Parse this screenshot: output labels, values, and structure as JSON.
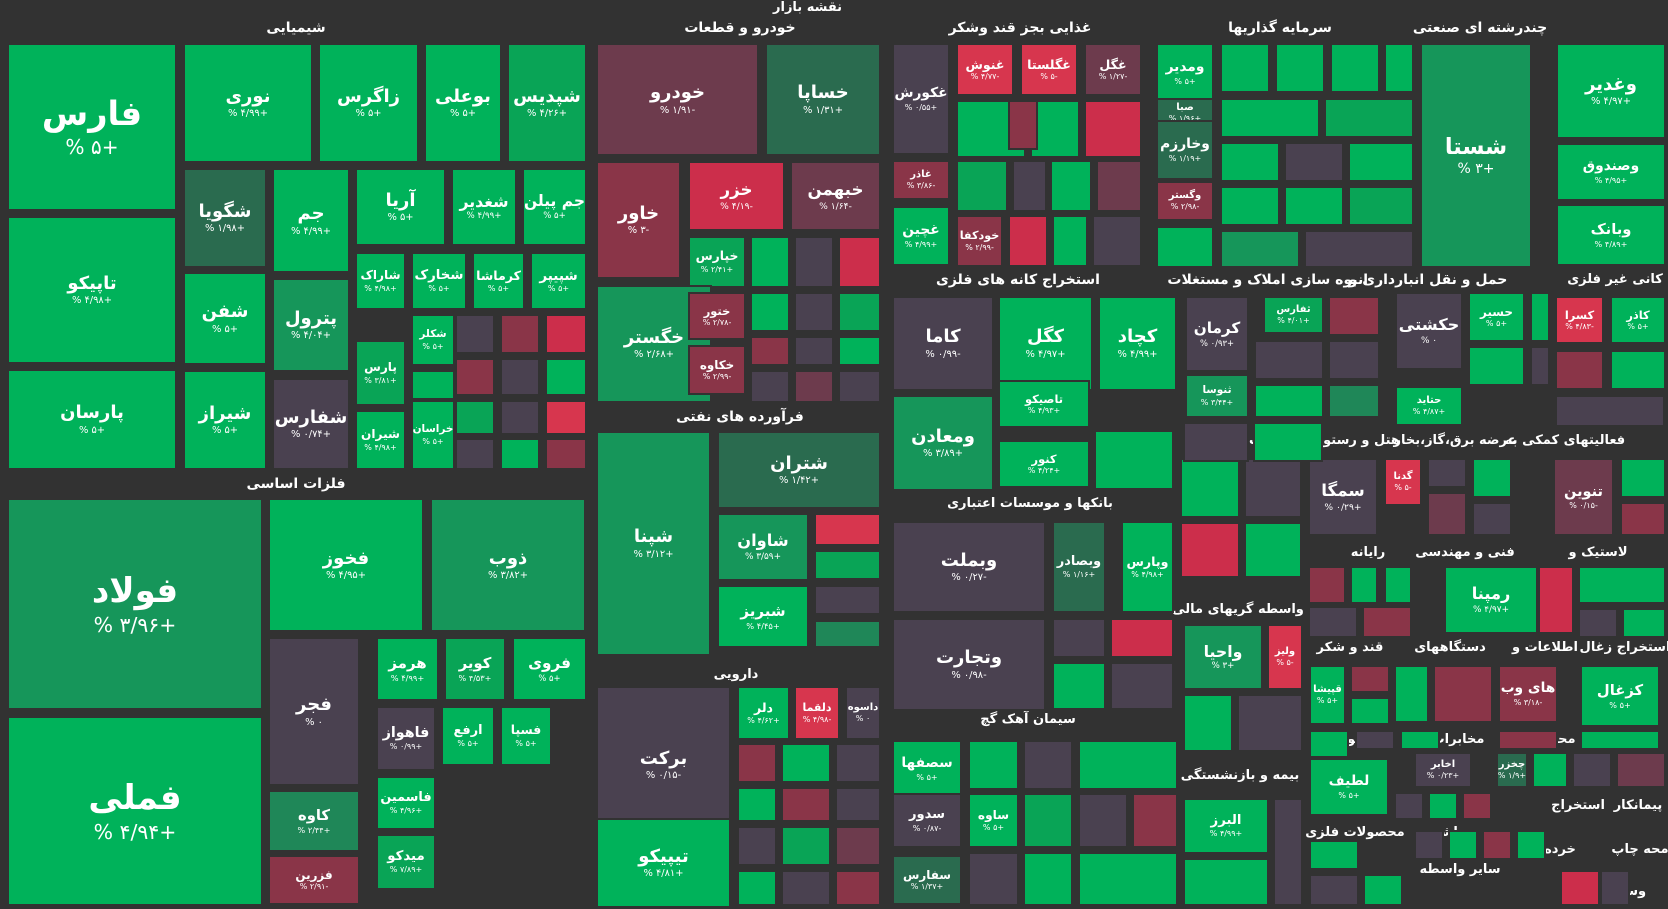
{
  "map_title": "نقشه بازار",
  "colors": {
    "g5": "#00b25a",
    "g4": "#09a456",
    "g3": "#16965a",
    "g2": "#1f8758",
    "g1": "#2a6b4f",
    "z": "#4a4150",
    "r1": "#6d3b4d",
    "r2": "#8a3548",
    "r3": "#a93248",
    "r4": "#cc2e4b",
    "r5": "#d7364e"
  },
  "sectors": [
    {
      "name": "شیمیایی"
    },
    {
      "name": "خودرو و قطعات"
    },
    {
      "name": "غذایی بجز قند وشکر"
    },
    {
      "name": "سرمایه گذاریها"
    },
    {
      "name": "چندرشته ای صنعتی"
    },
    {
      "name": "فلزات اساسی"
    },
    {
      "name": "فرآورده های نفتی"
    },
    {
      "name": "استخراج کانه های فلزی"
    },
    {
      "name": "انبوه سازی املاک و مستغلات"
    },
    {
      "name": "حمل و نقل انبارداری و"
    },
    {
      "name": "کانی غیر فلزی"
    },
    {
      "name": "زراعت و خدمات"
    },
    {
      "name": "هتل و رستوران"
    },
    {
      "name": "عرضه برق،گاز،بخار"
    },
    {
      "name": "فعالیتهای کمکی به"
    },
    {
      "name": "بانکها و موسسات اعتباری"
    },
    {
      "name": "دارویی"
    },
    {
      "name": "رایانه"
    },
    {
      "name": "فنی و مهندسی"
    },
    {
      "name": "لاستیک و"
    },
    {
      "name": "واسطه گریهای مالی"
    },
    {
      "name": "قند و شکر"
    },
    {
      "name": "دستگاههای"
    },
    {
      "name": "اطلاعات و"
    },
    {
      "name": "استخراج زغال"
    },
    {
      "name": "سیمان آهک گچ"
    },
    {
      "name": "محصولات"
    },
    {
      "name": "مخابرات"
    },
    {
      "name": "محصولات"
    },
    {
      "name": "کاشی و"
    },
    {
      "name": "بیمه و بازنشستگی"
    },
    {
      "name": "منسوجات"
    },
    {
      "name": "استخراج"
    },
    {
      "name": "پیمانکار"
    },
    {
      "name": "محصولات فلزی"
    },
    {
      "name": "ماشین"
    },
    {
      "name": "محه چاپ"
    },
    {
      "name": "خرده"
    },
    {
      "name": "سایر واسطه"
    },
    {
      "name": "وسایل"
    }
  ],
  "tiles": [
    {
      "name": "فارس",
      "pct": "+۵ %",
      "c": "g5",
      "big": 1
    },
    {
      "name": "تاپیکو",
      "pct": "+۴/۹۸ %",
      "c": "g5"
    },
    {
      "name": "پارسان",
      "pct": "+۵ %",
      "c": "g5"
    },
    {
      "name": "نوری",
      "pct": "+۴/۹۹ %",
      "c": "g5"
    },
    {
      "name": "زاگرس",
      "pct": "+۵ %",
      "c": "g5"
    },
    {
      "name": "بوعلی",
      "pct": "+۵ %",
      "c": "g5"
    },
    {
      "name": "شپدیس",
      "pct": "+۴/۲۶ %",
      "c": "g4"
    },
    {
      "name": "شگویا",
      "pct": "+۱/۹۸ %",
      "c": "g1"
    },
    {
      "name": "جم",
      "pct": "+۴/۹۹ %",
      "c": "g5"
    },
    {
      "name": "آریا",
      "pct": "+۵ %",
      "c": "g5"
    },
    {
      "name": "شغدیر",
      "pct": "+۴/۹۹ %",
      "c": "g5"
    },
    {
      "name": "جم پیلن",
      "pct": "+۵ %",
      "c": "g5"
    },
    {
      "name": "شفن",
      "pct": "+۵ %",
      "c": "g5"
    },
    {
      "name": "پترول",
      "pct": "+۴/۰۴ %",
      "c": "g3"
    },
    {
      "name": "شاراک",
      "pct": "+۴/۹۸ %",
      "c": "g5"
    },
    {
      "name": "شخارک",
      "pct": "+۵ %",
      "c": "g5"
    },
    {
      "name": "کرماشا",
      "pct": "+۵ %",
      "c": "g5"
    },
    {
      "name": "شپیپر",
      "pct": "+۵ %",
      "c": "g5"
    },
    {
      "name": "شکلر",
      "pct": "+۵ %",
      "c": "g5"
    },
    {
      "name": "شیراز",
      "pct": "+۵ %",
      "c": "g5"
    },
    {
      "name": "پارس",
      "pct": "+۳/۸۱ %",
      "c": "g4"
    },
    {
      "name": "شفارس",
      "pct": "+۰/۷۴ %",
      "c": "z"
    },
    {
      "name": "شیران",
      "pct": "+۴/۹۸ %",
      "c": "g5"
    },
    {
      "name": "خراسان",
      "pct": "+۵ %",
      "c": "g5"
    },
    {
      "name": "خودرو",
      "pct": "-۱/۹۱ %",
      "c": "r1"
    },
    {
      "name": "خساپا",
      "pct": "+۱/۳۱ %",
      "c": "g1"
    },
    {
      "name": "خاور",
      "pct": "-۳ %",
      "c": "r2"
    },
    {
      "name": "خزر",
      "pct": "-۴/۱۹ %",
      "c": "r4"
    },
    {
      "name": "خبهمن",
      "pct": "-۱/۶۴ %",
      "c": "r1"
    },
    {
      "name": "خپارس",
      "pct": "+۲/۴۱ %",
      "c": "g4"
    },
    {
      "name": "خگستر",
      "pct": "+۲/۶۸ %",
      "c": "g3"
    },
    {
      "name": "ختور",
      "pct": "-۲/۷۸ %",
      "c": "r2"
    },
    {
      "name": "خکاوه",
      "pct": "-۲/۹۹ %",
      "c": "r2"
    },
    {
      "name": "غکورش",
      "pct": "+۰/۵۵ %",
      "c": "z"
    },
    {
      "name": "غنوش",
      "pct": "-۴/۷۷ %",
      "c": "r5"
    },
    {
      "name": "غگلستا",
      "pct": "-۵ %",
      "c": "r5"
    },
    {
      "name": "غگل",
      "pct": "-۱/۲۷ %",
      "c": "r1"
    },
    {
      "name": "غاذر",
      "pct": "-۳/۸۶ %",
      "c": "r2"
    },
    {
      "name": "غچین",
      "pct": "+۴/۹۹ %",
      "c": "g5"
    },
    {
      "name": "خودکفا",
      "pct": "-۲/۹۹ %",
      "c": "r2"
    },
    {
      "name": "ومدیر",
      "pct": "+۵ %",
      "c": "g5"
    },
    {
      "name": "صبا",
      "pct": "+۱/۹۶ %",
      "c": "g1"
    },
    {
      "name": "وخارزم",
      "pct": "+۱/۱۹ %",
      "c": "g1"
    },
    {
      "name": "وگستر",
      "pct": "-۲/۹۸ %",
      "c": "r2"
    },
    {
      "name": "شستا",
      "pct": "+۳ %",
      "c": "g3",
      "big": 1
    },
    {
      "name": "وغدیر",
      "pct": "+۴/۹۷ %",
      "c": "g5"
    },
    {
      "name": "وصندوق",
      "pct": "+۴/۹۵ %",
      "c": "g5"
    },
    {
      "name": "وبانک",
      "pct": "+۴/۸۹ %",
      "c": "g5"
    },
    {
      "name": "فولاد",
      "pct": "+۳/۹۶ %",
      "c": "g3",
      "big": 1
    },
    {
      "name": "فملی",
      "pct": "+۴/۹۴ %",
      "c": "g5",
      "big": 1
    },
    {
      "name": "فخوز",
      "pct": "+۴/۹۵ %",
      "c": "g5"
    },
    {
      "name": "ذوب",
      "pct": "+۳/۸۲ %",
      "c": "g3"
    },
    {
      "name": "فجر",
      "pct": "۰ %",
      "c": "z"
    },
    {
      "name": "هرمز",
      "pct": "+۴/۹۹ %",
      "c": "g5"
    },
    {
      "name": "کویر",
      "pct": "+۴/۵۳ %",
      "c": "g4"
    },
    {
      "name": "فروی",
      "pct": "+۵ %",
      "c": "g5"
    },
    {
      "name": "فاهواز",
      "pct": "+۰/۹۹ %",
      "c": "z"
    },
    {
      "name": "ارفع",
      "pct": "+۵ %",
      "c": "g5"
    },
    {
      "name": "فسپا",
      "pct": "+۵ %",
      "c": "g5"
    },
    {
      "name": "کاوه",
      "pct": "+۲/۴۴ %",
      "c": "g2"
    },
    {
      "name": "فاسمین",
      "pct": "+۴/۹۶ %",
      "c": "g5"
    },
    {
      "name": "فزرین",
      "pct": "-۲/۹۱ %",
      "c": "r2"
    },
    {
      "name": "میدکو",
      "pct": "+۷/۸۹ %",
      "c": "g4"
    },
    {
      "name": "شپنا",
      "pct": "+۳/۱۲ %",
      "c": "g3"
    },
    {
      "name": "شتران",
      "pct": "+۱/۴۲ %",
      "c": "g1"
    },
    {
      "name": "شاوان",
      "pct": "+۳/۵۹ %",
      "c": "g3"
    },
    {
      "name": "شبریز",
      "pct": "+۴/۴۵ %",
      "c": "g5"
    },
    {
      "name": "برکت",
      "pct": "-۰/۱۵ %",
      "c": "z"
    },
    {
      "name": "تیپیکو",
      "pct": "+۴/۸۱ %",
      "c": "g5"
    },
    {
      "name": "دلر",
      "pct": "+۴/۶۲ %",
      "c": "g5"
    },
    {
      "name": "دلقما",
      "pct": "-۴/۹۸ %",
      "c": "r5"
    },
    {
      "name": "داسوه",
      "pct": "۰ %",
      "c": "z"
    },
    {
      "name": "کاما",
      "pct": "-۰/۹۹ %",
      "c": "z"
    },
    {
      "name": "کگل",
      "pct": "+۴/۹۷ %",
      "c": "g5"
    },
    {
      "name": "کچاد",
      "pct": "+۴/۹۹ %",
      "c": "g5"
    },
    {
      "name": "تاصیکو",
      "pct": "+۴/۹۳ %",
      "c": "g5"
    },
    {
      "name": "ومعادن",
      "pct": "+۳/۸۹ %",
      "c": "g3"
    },
    {
      "name": "کنور",
      "pct": "+۴/۲۴ %",
      "c": "g5"
    },
    {
      "name": "وبملت",
      "pct": "-۰/۲۷ %",
      "c": "z"
    },
    {
      "name": "وبصادر",
      "pct": "+۱/۱۶ %",
      "c": "g1"
    },
    {
      "name": "وپارس",
      "pct": "+۴/۹۸ %",
      "c": "g5"
    },
    {
      "name": "وتجارت",
      "pct": "-۰/۹۸ %",
      "c": "z"
    },
    {
      "name": "سصفها",
      "pct": "+۵ %",
      "c": "g5"
    },
    {
      "name": "سدور",
      "pct": "-۰/۸۷ %",
      "c": "z"
    },
    {
      "name": "ساوه",
      "pct": "+۵ %",
      "c": "g5"
    },
    {
      "name": "سفارس",
      "pct": "+۱/۳۷ %",
      "c": "g1"
    },
    {
      "name": "کرمان",
      "pct": "+۰/۹۳ %",
      "c": "z"
    },
    {
      "name": "ثفارس",
      "pct": "+۴/۰۱ %",
      "c": "g4"
    },
    {
      "name": "ثنوسا",
      "pct": "+۳/۴۴ %",
      "c": "g3"
    },
    {
      "name": "حکشتی",
      "pct": "۰ %",
      "c": "z"
    },
    {
      "name": "حسیر",
      "pct": "+۵ %",
      "c": "g5"
    },
    {
      "name": "حتاید",
      "pct": "+۴/۸۷ %",
      "c": "g5"
    },
    {
      "name": "کسرا",
      "pct": "-۴/۸۳ %",
      "c": "r5"
    },
    {
      "name": "کاذر",
      "pct": "+۵ %",
      "c": "g5"
    },
    {
      "name": "سمگا",
      "pct": "+۰/۲۹ %",
      "c": "z"
    },
    {
      "name": "گدنا",
      "pct": "-۵ %",
      "c": "r5"
    },
    {
      "name": "تنوین",
      "pct": "-۰/۱۵ %",
      "c": "r1"
    },
    {
      "name": "رمپنا",
      "pct": "+۴/۹۷ %",
      "c": "g5"
    },
    {
      "name": "واحیا",
      "pct": "+۳ %",
      "c": "g3"
    },
    {
      "name": "ولیز",
      "pct": "-۵ %",
      "c": "r5"
    },
    {
      "name": "قپیشا",
      "pct": "+۵ %",
      "c": "g5"
    },
    {
      "name": "های وب",
      "pct": "-۳/۱۸ %",
      "c": "r2"
    },
    {
      "name": "کزغال",
      "pct": "+۵ %",
      "c": "g5"
    },
    {
      "name": "لطیف",
      "pct": "+۵ %",
      "c": "g5"
    },
    {
      "name": "اخابر",
      "pct": "+۰/۲۳ %",
      "c": "z"
    },
    {
      "name": "چخزر",
      "pct": "+۱/۹ %",
      "c": "g1"
    },
    {
      "name": "البرز",
      "pct": "+۴/۹۹ %",
      "c": "g5"
    }
  ]
}
